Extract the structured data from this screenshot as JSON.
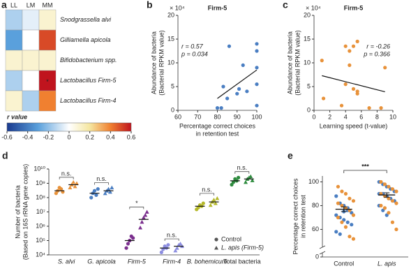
{
  "chart_data": [
    {
      "type": "heatmap",
      "panel_label": "a",
      "columns": [
        "LL",
        "LM",
        "MM"
      ],
      "rows": [
        "Snodgrassella alvi",
        "Gilliamella apicola",
        "Bifidobacterium spp.",
        "Lactobacillus Firm-5",
        "Lactobacillus Firm-4"
      ],
      "values": [
        [
          -0.15,
          -0.05,
          0.1
        ],
        [
          -0.3,
          0,
          0.5
        ],
        [
          0.1,
          0.1,
          0.1
        ],
        [
          -0.15,
          0,
          0.6
        ],
        [
          0.1,
          -0.15,
          0.4
        ]
      ],
      "annotations": [
        {
          "row": 3,
          "col": 2,
          "text": "*"
        }
      ],
      "colorbar": {
        "label": "r value",
        "lim": [
          -0.6,
          0.6
        ],
        "ticks": [
          -0.6,
          -0.4,
          -0.2,
          0,
          0.2,
          0.4,
          0.6
        ]
      }
    },
    {
      "type": "scatter",
      "panel_label": "b",
      "title": "Firm-5",
      "color": "#4a7ec2",
      "x": [
        80,
        82,
        83,
        85,
        86,
        90,
        91,
        93,
        95,
        100,
        100,
        100,
        100,
        100
      ],
      "y": [
        0.5,
        0.5,
        5,
        2.5,
        13.5,
        3.5,
        4.5,
        9.5,
        4,
        14,
        12.5,
        9,
        5.5,
        1
      ],
      "fit": {
        "x": [
          80,
          100
        ],
        "y": [
          2.5,
          8.5
        ]
      },
      "xlim": [
        60,
        100
      ],
      "xticks": [
        60,
        70,
        80,
        90,
        100
      ],
      "ylim": [
        0,
        20
      ],
      "yticks": [
        0,
        5,
        10,
        15,
        20
      ],
      "y_multiplier": "× 10⁴",
      "x_label": [
        "Percentage correct choices",
        "in retention test"
      ],
      "y_label": [
        "Abundance of bacteria",
        "(Bacterial RPKM value)"
      ],
      "annotations": [
        "r = 0.57",
        "p = 0.034"
      ],
      "annotation_corner": "upper left"
    },
    {
      "type": "scatter",
      "panel_label": "c",
      "title": "Firm-5",
      "color": "#e8923a",
      "x": [
        1,
        1.2,
        3.5,
        4,
        4,
        4.5,
        4.5,
        5,
        5,
        5.5,
        5.5,
        5.5,
        7,
        8.5,
        9
      ],
      "y": [
        10.5,
        2.5,
        1,
        13.5,
        5.5,
        9.5,
        12.5,
        4.5,
        13.5,
        3.5,
        14.5,
        4,
        0.5,
        0.5,
        9
      ],
      "fit": {
        "x": [
          1,
          9
        ],
        "y": [
          7.3,
          3.9
        ]
      },
      "xlim": [
        0,
        10
      ],
      "xticks": [
        0,
        2,
        4,
        6,
        8,
        10
      ],
      "ylim": [
        0,
        20
      ],
      "yticks": [
        0,
        5,
        10,
        15,
        20
      ],
      "y_multiplier": "× 10⁴",
      "x_label": [
        "Learning speed (t-value)"
      ],
      "y_label": [
        "Abundance of bacteria",
        "(Bacterial RPKM value)"
      ],
      "annotations": [
        "r = -0.26",
        "p = 0.366"
      ],
      "annotation_corner": "upper right"
    },
    {
      "type": "dotplot_log",
      "panel_label": "d",
      "log_scale": true,
      "categories": [
        "S. alvi",
        "G. apicola",
        "Firm-5",
        "Firm-4",
        "B. bohemicum",
        "Total bacteria"
      ],
      "category_colors": [
        "#e8923a",
        "#4a7ec2",
        "#7b2f8e",
        "#8c8de0",
        "#b5b82a",
        "#2e8b3e"
      ],
      "ylim": [
        10000.0,
        10000000000.0
      ],
      "yticks": [
        {
          "value": 10000.0,
          "label": "10⁴"
        },
        {
          "value": 100000.0,
          "label": "10⁵"
        },
        {
          "value": 1000000.0,
          "label": "10⁶"
        },
        {
          "value": 10000000.0,
          "label": "10⁷"
        },
        {
          "value": 100000000.0,
          "label": "10⁸"
        },
        {
          "value": 1000000000.0,
          "label": "10⁹"
        },
        {
          "value": 10000000000.0,
          "label": "10¹⁰"
        }
      ],
      "y_label": [
        "Number of bacteria",
        "(Based on 16S rRNA gene copies)"
      ],
      "series": [
        {
          "name": "Control",
          "marker": "circle",
          "means": [
            300000000.0,
            200000000.0,
            100000.0,
            30000.0,
            25000000.0,
            1500000000.0
          ],
          "points": [
            [
              200000000.0,
              300000000.0,
              500000000.0,
              400000000.0,
              250000000.0
            ],
            [
              100000000.0,
              200000000.0,
              300000000.0,
              150000000.0,
              400000000.0
            ],
            [
              30000.0,
              60000.0,
              100000.0,
              200000.0,
              150000.0
            ],
            [
              15000.0,
              25000.0,
              40000.0,
              30000.0,
              50000.0
            ],
            [
              15000000.0,
              20000000.0,
              30000000.0,
              25000000.0,
              40000000.0
            ],
            [
              800000000.0,
              1200000000.0,
              2000000000.0,
              1500000000.0,
              2500000000.0
            ]
          ]
        },
        {
          "name": "L. apis (Firm-5)",
          "marker": "triangle",
          "means": [
            800000000.0,
            300000000.0,
            3000000.0,
            40000.0,
            50000000.0,
            2000000000.0
          ],
          "points": [
            [
              500000000.0,
              800000000.0,
              1200000000.0,
              600000000.0,
              1000000000.0
            ],
            [
              200000000.0,
              300000000.0,
              400000000.0,
              250000000.0,
              500000000.0
            ],
            [
              800000.0,
              2000000.0,
              4000000.0,
              6000000.0,
              10000000.0
            ],
            [
              20000.0,
              30000.0,
              50000.0,
              60000.0,
              40000.0
            ],
            [
              30000000.0,
              50000000.0,
              70000000.0,
              40000000.0,
              90000000.0
            ],
            [
              1200000000.0,
              2000000000.0,
              2500000000.0,
              3000000000.0,
              1600000000.0
            ]
          ]
        }
      ],
      "significance": [
        "n.s.",
        "n.s.",
        "*",
        "n.s.",
        "n.s.",
        "n.s."
      ]
    },
    {
      "type": "dotplot",
      "panel_label": "e",
      "axis_break": true,
      "categories": [
        "Control",
        "L. apis"
      ],
      "ylim": [
        45,
        105
      ],
      "yticks": [
        0,
        60,
        80,
        100
      ],
      "y_label": [
        "Percentage correct choices",
        "in retention test"
      ],
      "series": [
        {
          "color": "#4a7ec2",
          "values": [
            [
              88,
              82,
              80,
              76,
              74,
              72,
              70,
              68,
              66,
              64,
              58,
              56,
              75,
              78
            ],
            [
              100,
              98,
              96,
              94,
              92,
              90,
              90,
              88,
              86,
              84,
              80,
              76,
              72
            ]
          ]
        },
        {
          "color": "#e8923a",
          "values": [
            [
              96,
              92,
              90,
              86,
              84,
              82,
              80,
              78,
              76,
              72,
              70,
              66,
              62,
              54,
              52
            ],
            [
              100,
              98,
              96,
              94,
              92,
              90,
              88,
              86,
              84,
              82,
              80,
              78,
              74,
              66,
              60
            ]
          ]
        }
      ],
      "means": [
        77,
        89
      ],
      "errors": [
        2,
        1.8
      ],
      "significance": "***"
    }
  ]
}
